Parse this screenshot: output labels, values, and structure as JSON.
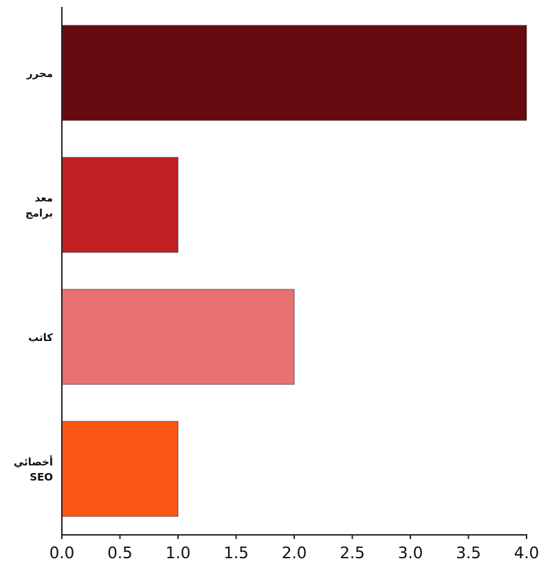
{
  "chart_data": {
    "type": "bar",
    "orientation": "horizontal",
    "categories": [
      "محرر",
      "معد برامج",
      "كاتب",
      "أخصائي SEO"
    ],
    "category_label_lines": [
      [
        "محرر"
      ],
      [
        "معد",
        "برامج"
      ],
      [
        "كاتب"
      ],
      [
        "أخصائي",
        "SEO"
      ]
    ],
    "values": [
      4,
      1,
      2,
      1
    ],
    "colors": [
      "#660c10",
      "#c21f25",
      "#e87171",
      "#fc5717"
    ],
    "xlim": [
      0,
      4
    ],
    "x_ticks": [
      "0.0",
      "0.5",
      "1.0",
      "1.5",
      "2.0",
      "2.5",
      "3.0",
      "3.5",
      "4.0"
    ],
    "title": "",
    "xlabel": "",
    "ylabel": "",
    "grid": false,
    "legend": "none"
  }
}
